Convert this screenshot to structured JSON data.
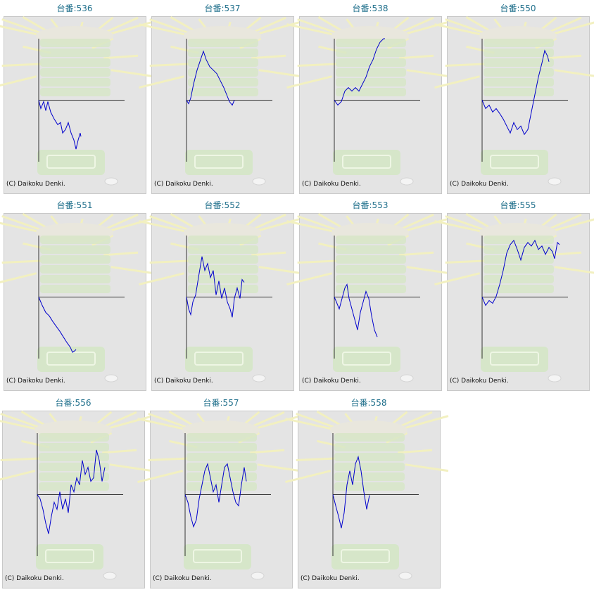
{
  "chart_data": [
    {
      "type": "line",
      "title": "台番:536",
      "annotation": "(C) Daikoku Denki.",
      "color": "#0000cc",
      "xlim": [
        0,
        122
      ],
      "ylim": [
        -88,
        88
      ],
      "x": [
        0,
        3,
        7,
        10,
        13,
        17,
        22,
        27,
        31,
        34,
        38,
        42,
        46,
        50,
        53,
        56,
        59,
        60
      ],
      "values": [
        0,
        -12,
        -2,
        -15,
        -2,
        -17,
        -27,
        -35,
        -32,
        -47,
        -42,
        -32,
        -47,
        -57,
        -70,
        -57,
        -47,
        -52
      ]
    },
    {
      "type": "line",
      "title": "台番:537",
      "annotation": "(C) Daikoku Denki.",
      "color": "#0000cc",
      "xlim": [
        0,
        122
      ],
      "ylim": [
        -88,
        88
      ],
      "x": [
        0,
        3,
        6,
        10,
        15,
        20,
        24,
        28,
        33,
        38,
        43,
        48,
        53,
        57,
        61,
        65,
        68
      ],
      "values": [
        0,
        -5,
        3,
        23,
        43,
        58,
        70,
        58,
        48,
        43,
        38,
        28,
        18,
        8,
        -2,
        -7,
        0
      ]
    },
    {
      "type": "line",
      "title": "台番:538",
      "annotation": "(C) Daikoku Denki.",
      "color": "#0000cc",
      "xlim": [
        0,
        122
      ],
      "ylim": [
        -88,
        88
      ],
      "x": [
        0,
        5,
        10,
        15,
        20,
        25,
        30,
        35,
        40,
        45,
        50,
        55,
        60,
        65,
        70,
        72
      ],
      "values": [
        0,
        -7,
        -2,
        13,
        18,
        13,
        18,
        13,
        23,
        33,
        48,
        58,
        73,
        83,
        88,
        88
      ]
    },
    {
      "type": "line",
      "title": "台番:550",
      "annotation": "(C) Daikoku Denki.",
      "color": "#0000cc",
      "xlim": [
        0,
        122
      ],
      "ylim": [
        -88,
        88
      ],
      "x": [
        0,
        5,
        10,
        15,
        20,
        25,
        30,
        35,
        40,
        45,
        50,
        55,
        60,
        65,
        70,
        75,
        80,
        85,
        89,
        93,
        95
      ],
      "values": [
        0,
        -12,
        -7,
        -17,
        -12,
        -19,
        -27,
        -37,
        -47,
        -32,
        -42,
        -37,
        -49,
        -42,
        -17,
        8,
        33,
        53,
        71,
        63,
        55
      ]
    },
    {
      "type": "line",
      "title": "台番:551",
      "annotation": "(C) Daikoku Denki.",
      "color": "#0000cc",
      "xlim": [
        0,
        122
      ],
      "ylim": [
        -88,
        88
      ],
      "x": [
        0,
        5,
        10,
        15,
        20,
        25,
        30,
        35,
        40,
        45,
        48,
        51,
        53
      ],
      "values": [
        0,
        -12,
        -22,
        -27,
        -35,
        -42,
        -49,
        -57,
        -65,
        -72,
        -79,
        -77,
        -75
      ]
    },
    {
      "type": "line",
      "title": "台番:552",
      "annotation": "(C) Daikoku Denki.",
      "color": "#0000cc",
      "xlim": [
        0,
        122
      ],
      "ylim": [
        -88,
        88
      ],
      "x": [
        0,
        3,
        6,
        9,
        13,
        17,
        22,
        26,
        30,
        34,
        38,
        42,
        46,
        50,
        54,
        58,
        62,
        65,
        68,
        72,
        76,
        79,
        82
      ],
      "values": [
        0,
        -17,
        -25,
        -7,
        3,
        28,
        58,
        38,
        48,
        28,
        38,
        3,
        23,
        -2,
        13,
        -7,
        -17,
        -29,
        -2,
        13,
        -2,
        25,
        21
      ]
    },
    {
      "type": "line",
      "title": "台番:553",
      "annotation": "(C) Daikoku Denki.",
      "color": "#0000cc",
      "xlim": [
        0,
        122
      ],
      "ylim": [
        -88,
        88
      ],
      "x": [
        0,
        3,
        7,
        11,
        15,
        18,
        21,
        25,
        29,
        33,
        37,
        41,
        45,
        49,
        53,
        57,
        61
      ],
      "values": [
        0,
        -7,
        -17,
        -2,
        13,
        18,
        -2,
        -17,
        -32,
        -47,
        -22,
        -7,
        8,
        -2,
        -27,
        -47,
        -57
      ]
    },
    {
      "type": "line",
      "title": "台番:555",
      "annotation": "(C) Daikoku Denki.",
      "color": "#0000cc",
      "xlim": [
        0,
        122
      ],
      "ylim": [
        -88,
        88
      ],
      "x": [
        0,
        5,
        10,
        15,
        20,
        25,
        30,
        35,
        40,
        45,
        50,
        55,
        60,
        65,
        70,
        75,
        80,
        85,
        90,
        95,
        100,
        103,
        107,
        110
      ],
      "values": [
        0,
        -12,
        -5,
        -9,
        1,
        18,
        38,
        63,
        75,
        81,
        68,
        53,
        71,
        78,
        73,
        81,
        68,
        73,
        61,
        71,
        65,
        55,
        78,
        75
      ]
    },
    {
      "type": "line",
      "title": "台番:556",
      "annotation": "(C) Daikoku Denki.",
      "color": "#0000cc",
      "xlim": [
        0,
        122
      ],
      "ylim": [
        -88,
        88
      ],
      "x": [
        0,
        4,
        8,
        12,
        16,
        20,
        24,
        28,
        32,
        36,
        40,
        44,
        48,
        52,
        56,
        60,
        64,
        68,
        72,
        76,
        80,
        84,
        88,
        92,
        96
      ],
      "values": [
        0,
        -6,
        -21,
        -41,
        -56,
        -31,
        -11,
        -21,
        4,
        -21,
        -6,
        -26,
        14,
        4,
        24,
        14,
        49,
        29,
        39,
        19,
        24,
        64,
        49,
        19,
        39
      ]
    },
    {
      "type": "line",
      "title": "台番:557",
      "annotation": "(C) Daikoku Denki.",
      "color": "#0000cc",
      "xlim": [
        0,
        122
      ],
      "ylim": [
        -88,
        88
      ],
      "x": [
        0,
        4,
        8,
        12,
        16,
        20,
        24,
        28,
        32,
        36,
        40,
        44,
        48,
        52,
        56,
        60,
        64,
        68,
        72,
        76,
        80,
        84,
        87
      ],
      "values": [
        0,
        -11,
        -31,
        -46,
        -36,
        -6,
        14,
        34,
        44,
        24,
        4,
        14,
        -11,
        14,
        39,
        44,
        24,
        4,
        -11,
        -16,
        14,
        39,
        19
      ]
    },
    {
      "type": "line",
      "title": "台番:558",
      "annotation": "(C) Daikoku Denki.",
      "color": "#0000cc",
      "xlim": [
        0,
        122
      ],
      "ylim": [
        -88,
        88
      ],
      "x": [
        0,
        4,
        8,
        12,
        16,
        20,
        24,
        28,
        32,
        36,
        40,
        44,
        48,
        52
      ],
      "values": [
        0,
        -16,
        -31,
        -48,
        -26,
        14,
        34,
        14,
        44,
        54,
        34,
        4,
        -21,
        -1
      ]
    }
  ]
}
